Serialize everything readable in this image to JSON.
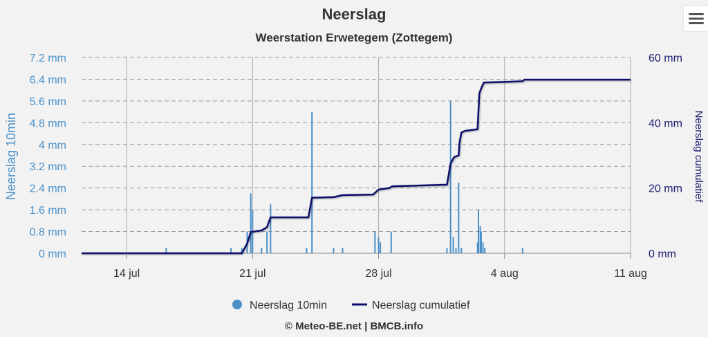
{
  "menu": {
    "icon": "hamburger-menu-icon"
  },
  "footer": {
    "credit": "© Meteo-BE.net | BMCB.info"
  },
  "colors": {
    "background": "#f2f2f2",
    "bars": "#4a8fc8",
    "cumulative": "#0d0d6b",
    "left_axis_text": "#4a90c8",
    "right_axis_text": "#1a1a6e",
    "grid": "#999999"
  },
  "chart_data": {
    "type": "bar+line",
    "title": "Neerslag",
    "subtitle": "Weerstation Erwetegem (Zottegem)",
    "ylabel_left": "Neerslag 10min",
    "ylabel_right": "Neerslag cumulatief",
    "x_ticks": [
      "14 jul",
      "21 jul",
      "28 jul",
      "4 aug",
      "11 aug"
    ],
    "x_tick_days": [
      14,
      21,
      28,
      35,
      42
    ],
    "xlim_days": [
      11.5,
      42
    ],
    "y_left_ticks": [
      "0 mm",
      "0.8 mm",
      "1.6 mm",
      "2.4 mm",
      "3.2 mm",
      "4 mm",
      "4.8 mm",
      "5.6 mm",
      "6.4 mm",
      "7.2 mm"
    ],
    "y_left_lim": [
      0,
      7.2
    ],
    "y_right_ticks": [
      "0 mm",
      "20 mm",
      "40 mm",
      "60 mm"
    ],
    "y_right_lim": [
      0,
      60
    ],
    "grid": "horizontal dashed, vertical at date ticks",
    "legend": [
      "Neerslag 10min",
      "Neerslag cumulatief"
    ],
    "legend_position": "bottom",
    "series": [
      {
        "name": "Neerslag 10min",
        "type": "bar",
        "axis": "left",
        "points": [
          [
            16.2,
            0.2
          ],
          [
            19.8,
            0.2
          ],
          [
            20.4,
            0.2
          ],
          [
            20.7,
            0.8
          ],
          [
            20.9,
            2.2
          ],
          [
            21.0,
            1.6
          ],
          [
            21.5,
            0.2
          ],
          [
            21.8,
            0.8
          ],
          [
            22.0,
            1.8
          ],
          [
            24.0,
            0.2
          ],
          [
            24.3,
            5.2
          ],
          [
            25.5,
            0.2
          ],
          [
            26.0,
            0.2
          ],
          [
            27.8,
            0.8
          ],
          [
            28.0,
            0.6
          ],
          [
            28.1,
            0.4
          ],
          [
            28.7,
            0.8
          ],
          [
            31.8,
            0.2
          ],
          [
            32.0,
            5.6
          ],
          [
            32.15,
            0.6
          ],
          [
            32.3,
            0.2
          ],
          [
            32.45,
            2.6
          ],
          [
            32.6,
            0.2
          ],
          [
            33.5,
            0.4
          ],
          [
            33.55,
            1.6
          ],
          [
            33.65,
            1.0
          ],
          [
            33.7,
            0.8
          ],
          [
            33.8,
            0.4
          ],
          [
            33.9,
            0.2
          ],
          [
            36.0,
            0.2
          ]
        ]
      },
      {
        "name": "Neerslag cumulatief",
        "type": "line",
        "axis": "right",
        "points": [
          [
            11.5,
            0
          ],
          [
            20.4,
            0
          ],
          [
            20.7,
            3
          ],
          [
            20.9,
            6.5
          ],
          [
            21.5,
            7
          ],
          [
            21.8,
            8
          ],
          [
            22.0,
            11
          ],
          [
            24.1,
            11
          ],
          [
            24.3,
            17
          ],
          [
            25.5,
            17.2
          ],
          [
            26.0,
            17.8
          ],
          [
            27.7,
            18
          ],
          [
            28.0,
            19.5
          ],
          [
            28.6,
            20
          ],
          [
            28.75,
            20.5
          ],
          [
            31.8,
            21
          ],
          [
            32.0,
            27.5
          ],
          [
            32.2,
            29.5
          ],
          [
            32.45,
            30
          ],
          [
            32.5,
            34
          ],
          [
            32.6,
            37
          ],
          [
            32.8,
            37.5
          ],
          [
            33.5,
            38
          ],
          [
            33.6,
            49
          ],
          [
            33.7,
            50.5
          ],
          [
            33.85,
            52.3
          ],
          [
            35.0,
            52.5
          ],
          [
            36.0,
            52.7
          ],
          [
            36.1,
            53.2
          ],
          [
            42.0,
            53.2
          ]
        ]
      }
    ]
  }
}
